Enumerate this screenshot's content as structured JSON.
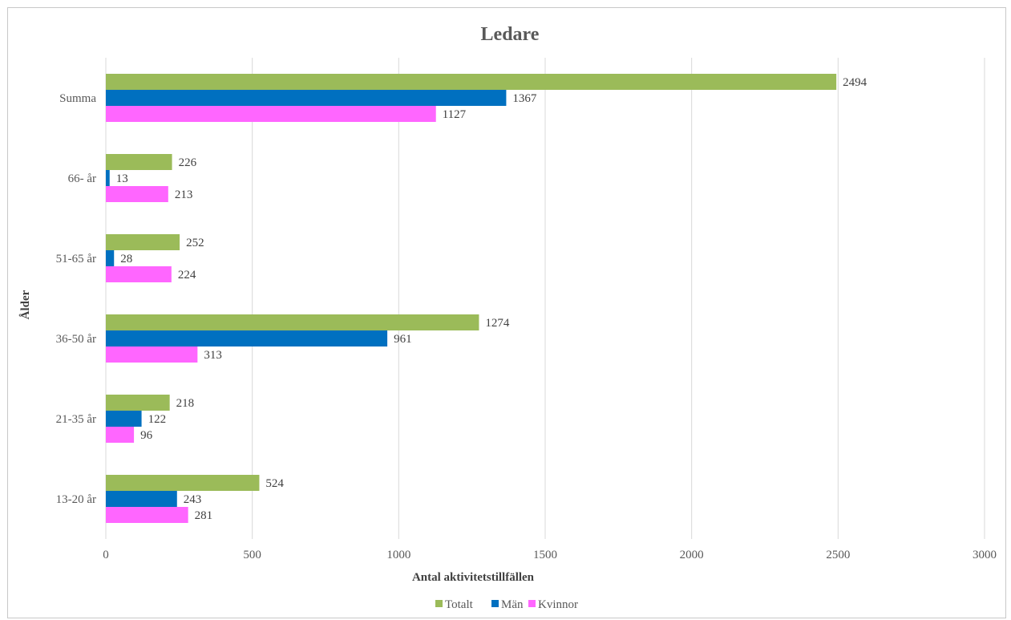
{
  "chart_data": {
    "type": "bar",
    "orientation": "horizontal",
    "title": "Ledare",
    "xlabel": "Antal aktivitetstillfällen",
    "ylabel": "Ålder",
    "xlim": [
      0,
      3000
    ],
    "xticks": [
      "0",
      "500",
      "1000",
      "1500",
      "2000",
      "2500",
      "3000"
    ],
    "categories": [
      "Summa",
      "66- år",
      "51-65 år",
      "36-50 år",
      "21-35 år",
      "13-20 år"
    ],
    "series": [
      {
        "name": "Totalt",
        "color": "#9bbb59",
        "values": [
          2494,
          226,
          252,
          1274,
          218,
          524
        ]
      },
      {
        "name": "Män",
        "color": "#0070c0",
        "values": [
          1367,
          13,
          28,
          961,
          122,
          243
        ]
      },
      {
        "name": "Kvinnor",
        "color": "#ff66ff",
        "values": [
          1127,
          213,
          224,
          313,
          96,
          281
        ]
      }
    ],
    "grid": true,
    "legend": "bottom"
  }
}
